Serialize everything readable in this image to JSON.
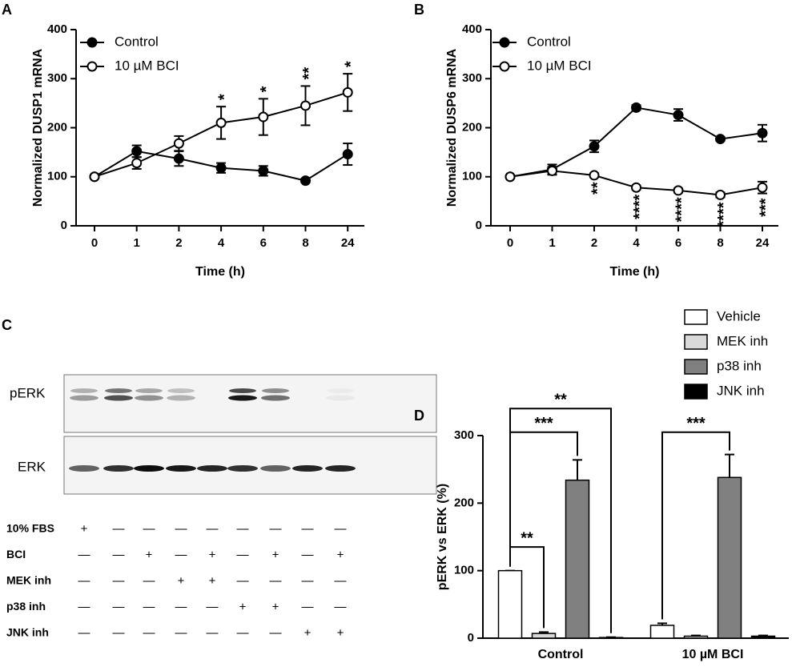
{
  "chart_data": [
    {
      "type": "line",
      "label": "A",
      "xlabel": "Time (h)",
      "ylabel": "Normalized DUSP1 mRNA",
      "categories": [
        "0",
        "1",
        "2",
        "4",
        "6",
        "8",
        "24"
      ],
      "ylim": [
        0,
        400
      ],
      "yticks": [
        0,
        100,
        200,
        300,
        400
      ],
      "series": [
        {
          "name": "Control",
          "color": "#000000",
          "marker": "filled",
          "values": [
            100,
            152,
            137,
            118,
            112,
            92,
            146
          ],
          "errors": [
            0,
            12,
            15,
            10,
            10,
            4,
            22
          ]
        },
        {
          "name": "10 µM BCI",
          "color": "#000000",
          "marker": "open",
          "values": [
            100,
            128,
            168,
            210,
            222,
            245,
            272
          ],
          "errors": [
            0,
            12,
            15,
            33,
            37,
            40,
            38
          ],
          "annotations": [
            null,
            null,
            null,
            "*",
            "*",
            "**",
            "*"
          ],
          "annotation_side": "above"
        }
      ]
    },
    {
      "type": "line",
      "label": "B",
      "xlabel": "Time (h)",
      "ylabel": "Normalized DUSP6 mRNA",
      "categories": [
        "0",
        "1",
        "2",
        "4",
        "6",
        "8",
        "24"
      ],
      "ylim": [
        0,
        400
      ],
      "yticks": [
        0,
        100,
        200,
        300,
        400
      ],
      "series": [
        {
          "name": "Control",
          "color": "#000000",
          "marker": "filled",
          "values": [
            100,
            115,
            162,
            241,
            226,
            177,
            189
          ],
          "errors": [
            0,
            10,
            12,
            5,
            12,
            4,
            17
          ]
        },
        {
          "name": "10 µM BCI",
          "color": "#000000",
          "marker": "open",
          "values": [
            100,
            112,
            103,
            78,
            72,
            63,
            78
          ],
          "errors": [
            0,
            8,
            4,
            4,
            4,
            5,
            12
          ],
          "annotations": [
            null,
            null,
            "**",
            "****",
            "****",
            "****",
            "***"
          ],
          "annotation_side": "below"
        }
      ]
    },
    {
      "type": "bar",
      "label": "D",
      "ylabel": "pERK vs ERK (%)",
      "categories": [
        "Control",
        "10 µM BCI"
      ],
      "ylim": [
        0,
        300
      ],
      "yticks": [
        0,
        100,
        200,
        300
      ],
      "series": [
        {
          "name": "Vehicle",
          "color": "#ffffff",
          "values": [
            100,
            19
          ],
          "errors": [
            0,
            3
          ]
        },
        {
          "name": "MEK inh",
          "color": "#d9d9d9",
          "values": [
            7,
            3
          ],
          "errors": [
            2,
            1
          ]
        },
        {
          "name": "p38 inh",
          "color": "#808080",
          "values": [
            234,
            238
          ],
          "errors": [
            30,
            34
          ]
        },
        {
          "name": "JNK inh",
          "color": "#000000",
          "values": [
            1,
            3
          ],
          "errors": [
            0.5,
            1
          ]
        }
      ],
      "brackets": [
        {
          "text": "**",
          "category": 0,
          "from": 0,
          "to": 1,
          "y": 135
        },
        {
          "text": "***",
          "category": 0,
          "from": 0,
          "to": 2,
          "y": 305
        },
        {
          "text": "**",
          "category": 0,
          "from": 0,
          "to": 3,
          "y": 340
        },
        {
          "text": "***",
          "category": 1,
          "from": 0,
          "to": 2,
          "y": 305
        }
      ]
    }
  ],
  "blot": {
    "label": "C",
    "bands": [
      "pERK",
      "ERK"
    ],
    "rows": [
      {
        "label": "10% FBS",
        "cells": [
          "+",
          "—",
          "—",
          "—",
          "—",
          "—",
          "—",
          "—",
          "—"
        ]
      },
      {
        "label": "BCI",
        "cells": [
          "—",
          "—",
          "+",
          "—",
          "+",
          "—",
          "+",
          "—",
          "+"
        ]
      },
      {
        "label": "MEK inh",
        "cells": [
          "—",
          "—",
          "—",
          "+",
          "+",
          "—",
          "—",
          "—",
          "—"
        ]
      },
      {
        "label": "p38 inh",
        "cells": [
          "—",
          "—",
          "—",
          "—",
          "—",
          "+",
          "+",
          "—",
          "—"
        ]
      },
      {
        "label": "JNK inh",
        "cells": [
          "—",
          "—",
          "—",
          "—",
          "—",
          "—",
          "—",
          "+",
          "+"
        ]
      }
    ]
  }
}
